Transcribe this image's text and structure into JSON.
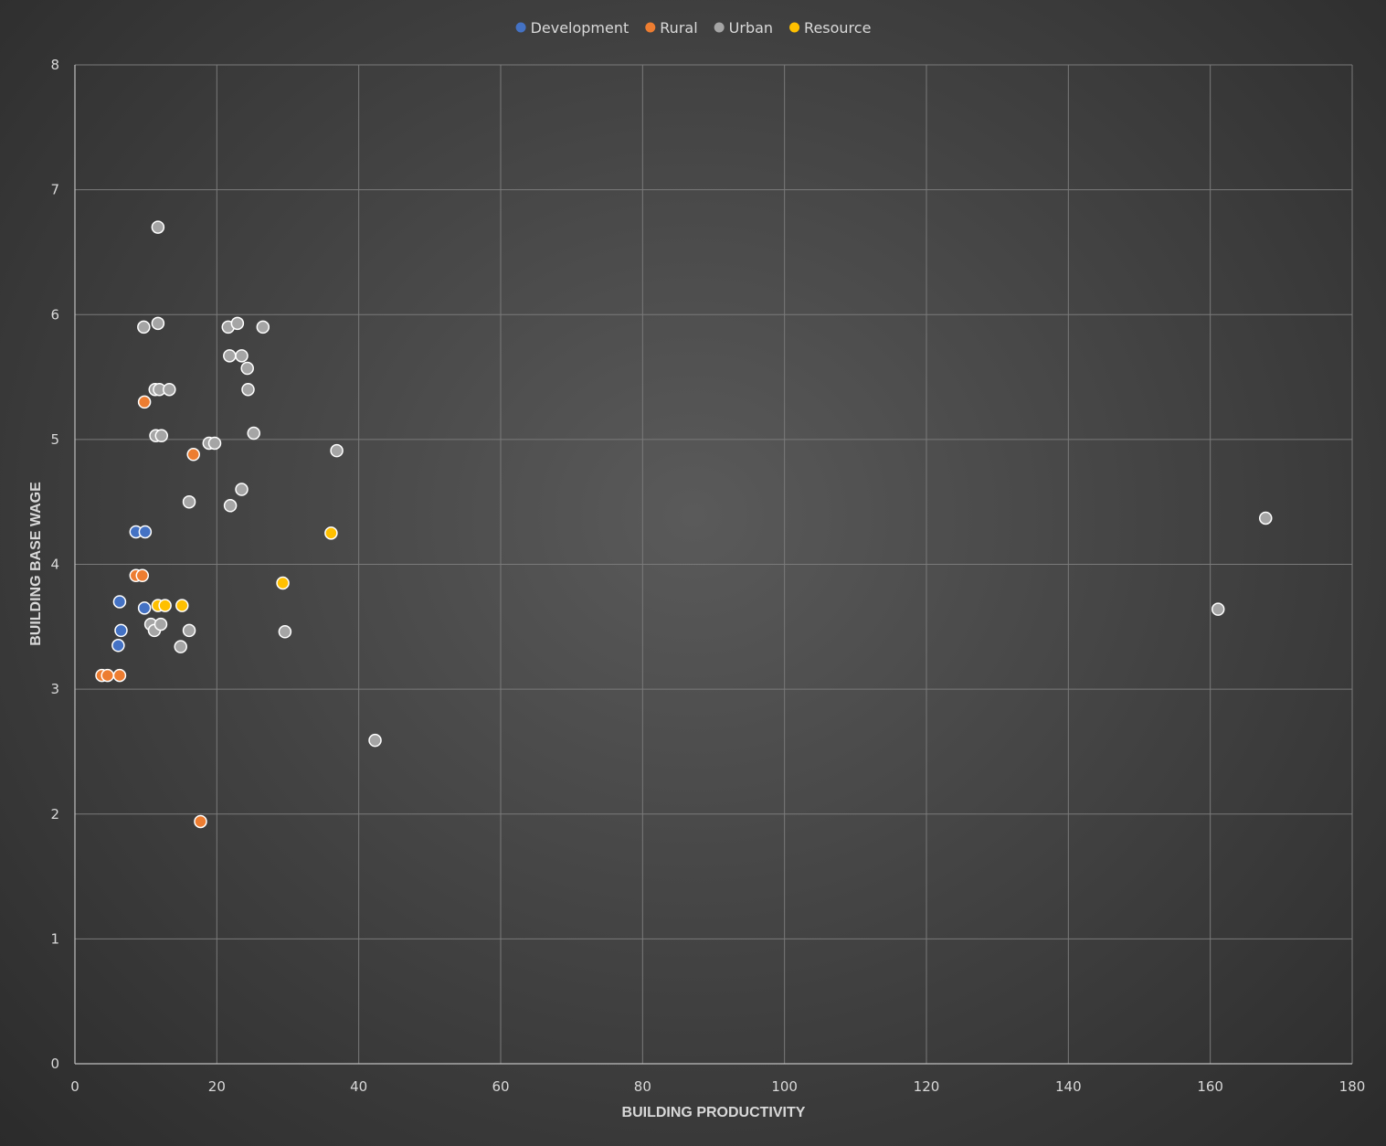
{
  "chart_data": {
    "type": "scatter",
    "title": "",
    "xlabel": "BUILDING PRODUCTIVITY",
    "ylabel": "BUILDING BASE WAGE",
    "xlim": [
      0,
      180
    ],
    "ylim": [
      0,
      8
    ],
    "x_ticks": [
      "0",
      "20",
      "40",
      "60",
      "80",
      "100",
      "120",
      "140",
      "160",
      "180"
    ],
    "y_ticks": [
      "0",
      "1",
      "2",
      "3",
      "4",
      "5",
      "6",
      "7",
      "8"
    ],
    "grid": true,
    "legend_position": "top-center",
    "series": [
      {
        "name": "Development",
        "color": "#4472c4",
        "points": [
          [
            8.6,
            4.26
          ],
          [
            9.9,
            4.26
          ],
          [
            6.3,
            3.7
          ],
          [
            9.8,
            3.65
          ],
          [
            6.5,
            3.47
          ],
          [
            6.1,
            3.35
          ]
        ]
      },
      {
        "name": "Rural",
        "color": "#ed7d31",
        "points": [
          [
            9.8,
            5.3
          ],
          [
            16.7,
            4.88
          ],
          [
            8.6,
            3.91
          ],
          [
            9.5,
            3.91
          ],
          [
            3.8,
            3.11
          ],
          [
            4.6,
            3.11
          ],
          [
            6.3,
            3.11
          ],
          [
            17.7,
            1.94
          ]
        ]
      },
      {
        "name": "Urban",
        "color": "#a5a5a5",
        "points": [
          [
            11.7,
            6.7
          ],
          [
            9.7,
            5.9
          ],
          [
            11.7,
            5.93
          ],
          [
            21.6,
            5.9
          ],
          [
            22.9,
            5.93
          ],
          [
            26.5,
            5.9
          ],
          [
            21.8,
            5.67
          ],
          [
            23.5,
            5.67
          ],
          [
            24.3,
            5.57
          ],
          [
            11.3,
            5.4
          ],
          [
            11.9,
            5.4
          ],
          [
            13.3,
            5.4
          ],
          [
            24.4,
            5.4
          ],
          [
            11.4,
            5.03
          ],
          [
            12.2,
            5.03
          ],
          [
            18.9,
            4.97
          ],
          [
            19.7,
            4.97
          ],
          [
            25.2,
            5.05
          ],
          [
            36.9,
            4.91
          ],
          [
            16.1,
            4.5
          ],
          [
            21.9,
            4.47
          ],
          [
            23.5,
            4.6
          ],
          [
            10.7,
            3.52
          ],
          [
            11.2,
            3.47
          ],
          [
            12.1,
            3.52
          ],
          [
            16.1,
            3.47
          ],
          [
            14.9,
            3.34
          ],
          [
            29.6,
            3.46
          ],
          [
            42.3,
            2.59
          ],
          [
            161.1,
            3.64
          ],
          [
            167.8,
            4.37
          ]
        ]
      },
      {
        "name": "Resource",
        "color": "#ffc000",
        "points": [
          [
            36.1,
            4.25
          ],
          [
            29.3,
            3.85
          ],
          [
            11.7,
            3.67
          ],
          [
            12.7,
            3.67
          ],
          [
            15.1,
            3.67
          ]
        ]
      }
    ]
  }
}
